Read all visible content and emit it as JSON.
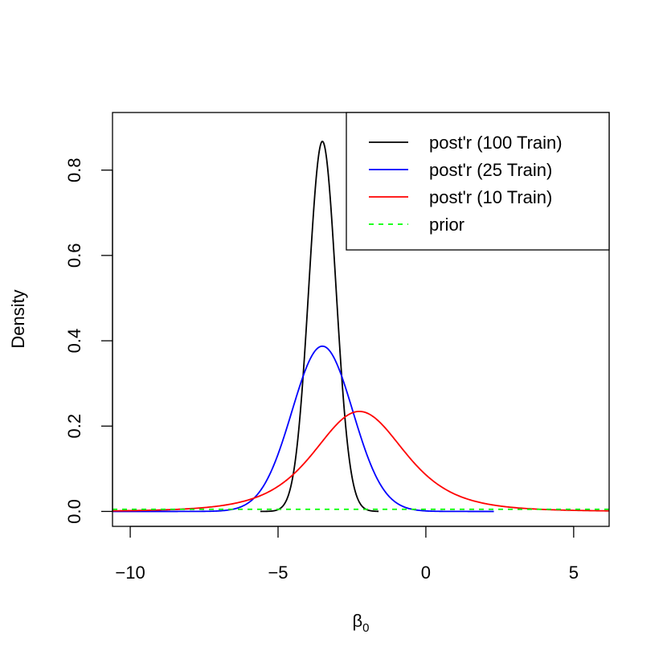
{
  "chart_data": {
    "type": "line",
    "title": "",
    "xlabel": "β",
    "xlabel_subscript": "0",
    "ylabel": "Density",
    "xlim": [
      -10.6,
      6.2
    ],
    "ylim": [
      -0.035,
      0.935
    ],
    "x_ticks": [
      -10,
      -5,
      0,
      5
    ],
    "x_tick_labels": [
      "−10",
      "−5",
      "0",
      "5"
    ],
    "y_ticks": [
      0.0,
      0.2,
      0.4,
      0.6,
      0.8
    ],
    "y_tick_labels": [
      "0.0",
      "0.2",
      "0.4",
      "0.6",
      "0.8"
    ],
    "grid": false,
    "legend_position": "top-right",
    "series": [
      {
        "name": "post'r (100 Train)",
        "color": "#000000",
        "dash": "solid",
        "distribution": "normal",
        "mean": -3.5,
        "sd": 0.46,
        "x_range": [
          -5.6,
          -1.6
        ]
      },
      {
        "name": "post'r (25 Train)",
        "color": "#0000ff",
        "dash": "solid",
        "distribution": "normal",
        "mean": -3.5,
        "sd": 1.03,
        "x_range": [
          -10.6,
          2.3
        ]
      },
      {
        "name": "post'r (10 Train)",
        "color": "#ff0000",
        "dash": "solid",
        "distribution": "t",
        "mean": -2.25,
        "scale": 1.6,
        "df": 4,
        "x_range": [
          -10.6,
          6.2
        ]
      },
      {
        "name": "prior",
        "color": "#00ff00",
        "dash": "dashed",
        "distribution": "uniform",
        "density": 0.005,
        "x_range": [
          -10.6,
          6.2
        ]
      }
    ]
  }
}
